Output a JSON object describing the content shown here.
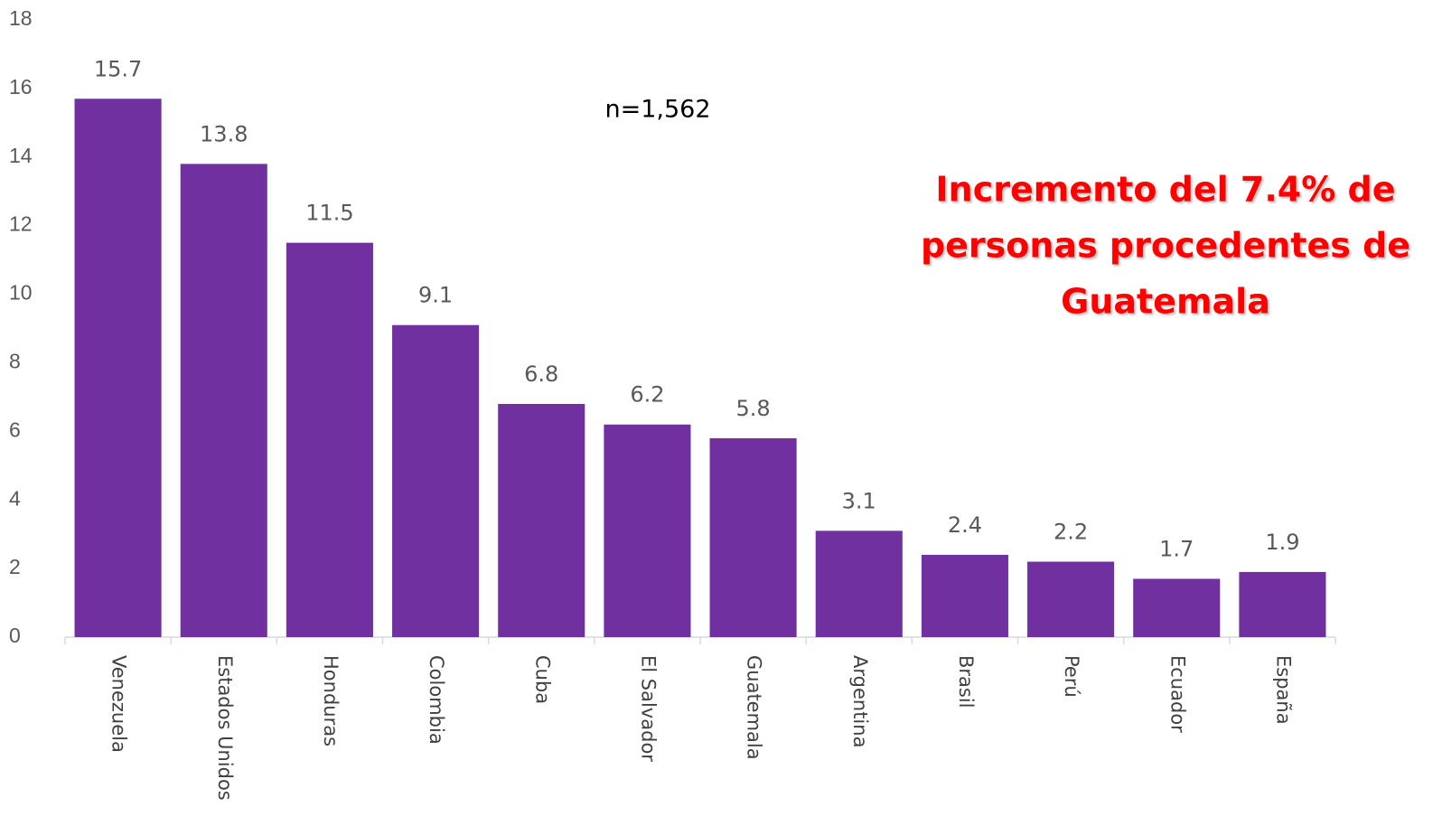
{
  "chart_data": {
    "type": "bar",
    "categories": [
      "Venezuela",
      "Estados Unidos",
      "Honduras",
      "Colombia",
      "Cuba",
      "El Salvador",
      "Guatemala",
      "Argentina",
      "Brasil",
      "Perú",
      "Ecuador",
      "España"
    ],
    "values": [
      15.7,
      13.8,
      11.5,
      9.1,
      6.8,
      6.2,
      5.8,
      3.1,
      2.4,
      2.2,
      1.7,
      1.9
    ],
    "color": "#7030a0",
    "ylim": [
      0,
      18
    ],
    "yticks": [
      0,
      2,
      4,
      6,
      8,
      10,
      12,
      14,
      16,
      18
    ],
    "grid": false,
    "note": "n=1,562",
    "highlight": [
      "Incremento del 7.4% de",
      "personas procedentes de",
      "Guatemala"
    ],
    "highlight_color": "#ff0000"
  }
}
